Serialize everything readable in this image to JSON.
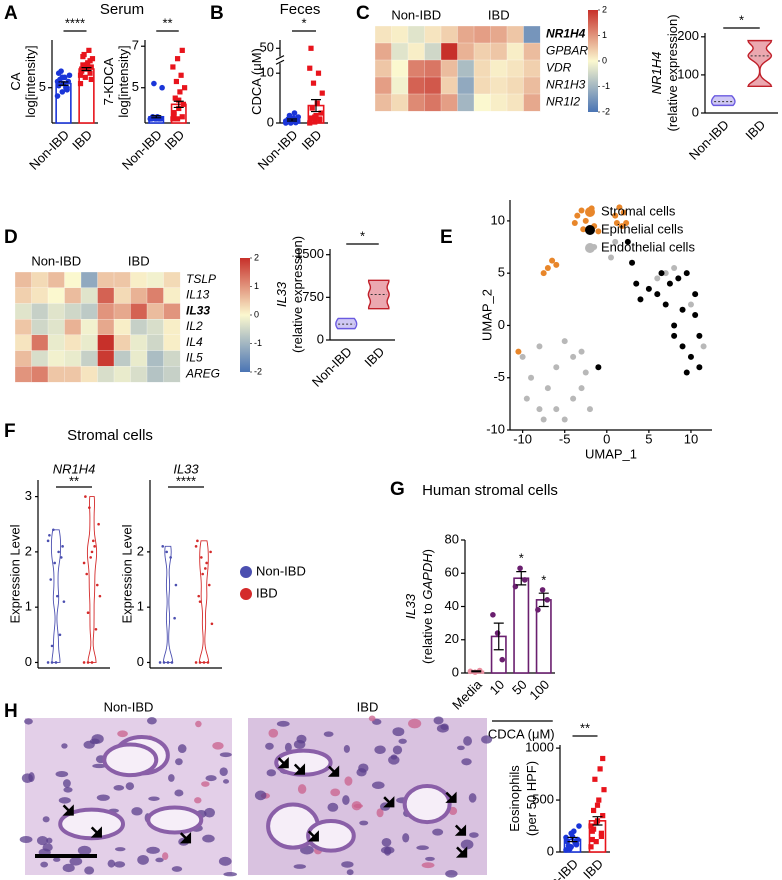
{
  "chart_data": [
    {
      "type": "bar",
      "panel": "A",
      "title": "Serum",
      "categories": [
        "Non-IBD",
        "IBD"
      ],
      "values": [
        5.2,
        5.9
      ],
      "errors": [
        0.08,
        0.07
      ],
      "points": [
        [
          4.6,
          4.8,
          5.0,
          5.1,
          5.2,
          5.3,
          5.4,
          5.5,
          5.6,
          5.8,
          5.0,
          5.3,
          5.5,
          4.9,
          5.7,
          5.2
        ],
        [
          5.2,
          5.5,
          5.7,
          5.8,
          5.9,
          6.0,
          6.1,
          6.2,
          6.4,
          6.6,
          6.8,
          5.6,
          6.0,
          6.3,
          5.9,
          6.1,
          5.4,
          6.5
        ]
      ],
      "colors": [
        "#1a35d8",
        "#e8141c"
      ],
      "markers": [
        "circle",
        "square"
      ],
      "ylabel": [
        [
          "CA"
        ],
        [
          "log[intensity]"
        ]
      ],
      "ylabel_italic": [
        [
          false
        ],
        [
          false
        ]
      ],
      "ylim": [
        3.3,
        7.3
      ],
      "yticks": [
        5
      ],
      "significance": "****"
    },
    {
      "type": "bar",
      "categories": [
        "Non-IBD",
        "IBD"
      ],
      "values": [
        3.6,
        4.2
      ],
      "errors": [
        0.05,
        0.15
      ],
      "points": [
        [
          3.5,
          3.5,
          3.5,
          3.5,
          3.5,
          3.5,
          3.6,
          3.6,
          5.0,
          5.2,
          3.5,
          3.5
        ],
        [
          3.5,
          3.5,
          3.6,
          3.8,
          4.0,
          4.2,
          4.5,
          4.8,
          5.0,
          5.3,
          5.6,
          6.0,
          6.4,
          6.8,
          3.7,
          4.4
        ]
      ],
      "colors": [
        "#1a35d8",
        "#e8141c"
      ],
      "markers": [
        "circle",
        "square"
      ],
      "ylabel": [
        [
          "7-KDCA"
        ],
        [
          "log[intensity]"
        ]
      ],
      "ylabel_italic": [
        [
          false
        ],
        [
          false
        ]
      ],
      "ylim": [
        3.3,
        7.3
      ],
      "yticks": [
        5,
        7
      ],
      "significance": "**"
    },
    {
      "type": "bar",
      "panel": "B",
      "title": "Feces",
      "categories": [
        "Non-IBD",
        "IBD"
      ],
      "values": [
        0.6,
        3.5
      ],
      "errors": [
        0.2,
        1.2
      ],
      "points": [
        [
          0,
          0,
          0.1,
          0.2,
          0.3,
          0.5,
          0.8,
          1,
          1.2,
          1.5,
          2,
          0.4,
          0.6,
          0.1
        ],
        [
          0,
          0.2,
          0.5,
          1,
          1.5,
          2,
          3,
          4,
          6,
          8,
          10,
          11,
          1.2,
          0.8,
          50
        ]
      ],
      "colors": [
        "#1a35d8",
        "#e8141c"
      ],
      "markers": [
        "circle",
        "square"
      ],
      "ylabel": [
        [
          "CDCA (μM)"
        ]
      ],
      "ylabel_italic": [
        [
          false
        ]
      ],
      "ylim": [
        0,
        55
      ],
      "ybreak": [
        12,
        45
      ],
      "yticks": [
        0,
        10,
        50
      ],
      "significance": "*"
    },
    {
      "type": "heatmap",
      "panel": "C",
      "groups": [
        "Non-IBD",
        "IBD"
      ],
      "rows": [
        "NR1H4",
        "GPBAR1",
        "VDR",
        "NR1H3",
        "NR1I2"
      ],
      "row_bold": [
        true,
        false,
        false,
        false,
        false
      ],
      "values": [
        [
          0.2,
          0.1,
          -0.3,
          0.2,
          0.4,
          0.8,
          0.9,
          0.8,
          0.5,
          -1.5
        ],
        [
          0.8,
          -0.3,
          0.1,
          -0.5,
          2,
          0.7,
          0.4,
          0.5,
          0.1,
          0.6
        ],
        [
          0.5,
          0.0,
          1.2,
          1.3,
          0.6,
          -0.9,
          0.3,
          0.1,
          0.2,
          0.4
        ],
        [
          0.9,
          -0.1,
          1.5,
          1.6,
          0.4,
          -1.2,
          0.3,
          0.2,
          0.3,
          0.6
        ],
        [
          0.6,
          0.3,
          1.1,
          1.3,
          0.9,
          -1.0,
          0.0,
          0.1,
          0.2,
          0.8
        ]
      ],
      "zlim": [
        -2,
        2
      ],
      "colorbar_ticks": [
        2,
        1,
        0,
        -1,
        -2
      ],
      "cmap": [
        "#4a74b4",
        "#fbf8cf",
        "#c7302a"
      ]
    },
    {
      "type": "violin",
      "categories": [
        "Non-IBD",
        "IBD"
      ],
      "points": [
        [
          20,
          30,
          45
        ],
        [
          70,
          150,
          190
        ]
      ],
      "colors": [
        "#cfc8f4",
        "#eba8b0"
      ],
      "strokes": [
        "#6a5ae0",
        "#c0202a"
      ],
      "ylabel": [
        [
          "NR1H4"
        ],
        [
          "(relative expression)"
        ]
      ],
      "ylabel_italic": [
        [
          true
        ],
        [
          false
        ]
      ],
      "ylim": [
        0,
        210
      ],
      "yticks": [
        0,
        100,
        200
      ],
      "significance": "*"
    },
    {
      "type": "heatmap",
      "panel": "D",
      "groups": [
        "Non-IBD",
        "IBD"
      ],
      "rows": [
        "TSLP",
        "IL13",
        "IL33",
        "IL2",
        "IL4",
        "IL5",
        "AREG"
      ],
      "row_bold": [
        false,
        false,
        true,
        false,
        false,
        false,
        false
      ],
      "values": [
        [
          0.6,
          0.3,
          0.6,
          0.0,
          -1.2,
          0.5,
          0.5,
          0.1,
          -0.1,
          0.3
        ],
        [
          0.4,
          0.2,
          0.0,
          0.6,
          -0.3,
          1.5,
          0.3,
          0.7,
          1.2,
          0.1
        ],
        [
          -0.3,
          -0.6,
          -0.3,
          -0.5,
          -0.7,
          1.0,
          0.8,
          1.5,
          0.6,
          1.0
        ],
        [
          0.5,
          -0.5,
          -0.3,
          0.7,
          -0.1,
          0.8,
          0.1,
          -0.6,
          -0.4,
          0.1
        ],
        [
          0.2,
          1.3,
          -0.2,
          0.2,
          -0.2,
          2.0,
          0.4,
          -0.2,
          -0.5,
          0.1
        ],
        [
          0.6,
          -0.4,
          -0.1,
          -0.2,
          -0.6,
          1.9,
          -0.7,
          -0.2,
          -0.9,
          -0.5
        ],
        [
          1.0,
          1.2,
          0.5,
          0.5,
          0.2,
          -0.4,
          -0.2,
          -0.4,
          -0.8,
          -0.6
        ]
      ],
      "zlim": [
        -2,
        2
      ],
      "colorbar_ticks": [
        2,
        1,
        0,
        -1,
        -2
      ],
      "cmap": [
        "#4a74b4",
        "#fbf8cf",
        "#c7302a"
      ]
    },
    {
      "type": "violin",
      "categories": [
        "Non-IBD",
        "IBD"
      ],
      "points": [
        [
          200,
          280,
          380
        ],
        [
          550,
          800,
          1050
        ]
      ],
      "colors": [
        "#cfc8f4",
        "#eba8b0"
      ],
      "strokes": [
        "#6a5ae0",
        "#c0202a"
      ],
      "ylabel": [
        [
          "IL33"
        ],
        [
          "(relative expression)"
        ]
      ],
      "ylabel_italic": [
        [
          true
        ],
        [
          false
        ]
      ],
      "ylim": [
        0,
        1600
      ],
      "yticks": [
        0,
        750,
        1500
      ],
      "significance": "*"
    },
    {
      "type": "scatter",
      "panel": "E",
      "xlabel": "UMAP_1",
      "ylabel": "UMAP_2",
      "xlim": [
        -11.5,
        12.5
      ],
      "ylim": [
        -10,
        12
      ],
      "xticks": [
        -10,
        -5,
        0,
        5,
        10
      ],
      "yticks": [
        -10,
        -5,
        0,
        5,
        10
      ],
      "series": [
        {
          "name": "Stromal cells",
          "color": "#e8862a",
          "x": [
            -3.5,
            -3,
            -2.5,
            -2,
            -1.5,
            -1,
            -2.8,
            -3.8,
            -1.8,
            1,
            1.5,
            2,
            1.8,
            2.3,
            1.2,
            -7,
            -6.5,
            -7.5,
            -6,
            -10.5
          ],
          "y": [
            10.5,
            11,
            10,
            10.8,
            9.5,
            9,
            9.2,
            9.8,
            11.2,
            10.5,
            11.3,
            10.8,
            9.5,
            9.8,
            9.8,
            5.5,
            6.2,
            5,
            5.8,
            -2.5
          ]
        },
        {
          "name": "Epithelial cells",
          "color": "#000000",
          "x": [
            2.5,
            3,
            3.5,
            4,
            5,
            6,
            6.5,
            7.5,
            8.5,
            9.5,
            10.5,
            9,
            8,
            9,
            10,
            11,
            9.5,
            8,
            7,
            11,
            10.5,
            -1
          ],
          "y": [
            8,
            6,
            4,
            2.5,
            3.5,
            3,
            5,
            4,
            4.5,
            5,
            3,
            1.5,
            0,
            -2,
            -3,
            -4,
            -4.5,
            -1,
            2,
            -1,
            1,
            -4
          ]
        },
        {
          "name": "Endothelial cells",
          "color": "#b8b8b8",
          "x": [
            -10,
            -9,
            -8,
            -7,
            -6,
            -5,
            -4,
            -3,
            -2,
            -8,
            -6,
            -4,
            -3,
            -5,
            -9.5,
            -7.5,
            -2.5,
            0.5,
            1,
            -1.5,
            7,
            8,
            6,
            10,
            11.5
          ],
          "y": [
            -3,
            -5,
            -2,
            -6,
            -8,
            -9,
            -7,
            -6,
            -8,
            -8,
            -4,
            -3,
            -2.5,
            -1.5,
            -7,
            -9,
            -4.5,
            6.5,
            8,
            7.5,
            5,
            5.5,
            4.5,
            2,
            -2
          ]
        }
      ]
    },
    {
      "type": "strip",
      "panel": "F",
      "title": "Stromal cells",
      "subtitle": "NR1H4",
      "ylabel": "Expression Level",
      "ylim": [
        -0.1,
        3.3
      ],
      "yticks": [
        0,
        1,
        2,
        3
      ],
      "significance": "**",
      "series": [
        {
          "color": "#4b4fb0",
          "values": [
            0,
            0,
            0,
            0.5,
            1.1,
            1.5,
            1.8,
            2,
            2.1,
            2.3,
            2.4,
            1.2,
            1.9,
            2.2,
            0.3
          ]
        },
        {
          "color": "#d42a2a",
          "values": [
            0,
            0,
            0,
            0.6,
            1.2,
            1.6,
            1.9,
            2.1,
            2.5,
            3,
            2.8,
            2.2,
            1.4,
            1.8,
            0.9,
            2.0
          ]
        }
      ]
    },
    {
      "type": "strip",
      "subtitle": "IL33",
      "ylabel": "Expression Level",
      "ylim": [
        -0.1,
        3.3
      ],
      "yticks": [
        0,
        1,
        2
      ],
      "significance": "****",
      "legend": true,
      "series": [
        {
          "name": "Non-IBD",
          "color": "#4b4fb0",
          "values": [
            0,
            0,
            0,
            0,
            1.4,
            2.1,
            2,
            1.9,
            0.8
          ]
        },
        {
          "name": "IBD",
          "color": "#d42a2a",
          "values": [
            0,
            0,
            0,
            0,
            0.7,
            1.2,
            1.6,
            1.8,
            2.0,
            2.2,
            1.9,
            1.7,
            1.4,
            2.1,
            1.1
          ]
        }
      ]
    },
    {
      "type": "bar",
      "panel": "G",
      "title": "Human stromal cells",
      "categories": [
        "Media",
        "10",
        "50",
        "100"
      ],
      "xlabel": "CDCA (μM)",
      "values": [
        1,
        22,
        57,
        44
      ],
      "errors": [
        0.3,
        8,
        4,
        4
      ],
      "points": [
        [
          1,
          0.5,
          1.5
        ],
        [
          35,
          24,
          8
        ],
        [
          52,
          63,
          56
        ],
        [
          38,
          50,
          44
        ]
      ],
      "colors": [
        "#e98fa0",
        "#6a1f6f",
        "#6a1f6f",
        "#6a1f6f"
      ],
      "markers": [
        "circle",
        "circle",
        "circle",
        "circle"
      ],
      "ylabel": [
        [
          "IL33"
        ],
        [
          "(relative to ",
          "GAPDH",
          ")"
        ]
      ],
      "ylabel_italic": [
        [
          true
        ],
        [
          false,
          true,
          false
        ]
      ],
      "ylim": [
        0,
        80
      ],
      "yticks": [
        0,
        20,
        40,
        60,
        80
      ],
      "significance": [
        null,
        null,
        "*",
        "*"
      ]
    },
    {
      "type": "micrograph",
      "panel": "H",
      "labels": [
        "Non-IBD",
        "IBD"
      ]
    },
    {
      "type": "bar",
      "categories": [
        "Non-IBD",
        "IBD"
      ],
      "values": [
        120,
        300
      ],
      "errors": [
        20,
        40
      ],
      "points": [
        [
          20,
          50,
          80,
          100,
          150,
          120,
          60,
          200,
          250,
          30,
          90,
          140,
          180,
          70
        ],
        [
          50,
          100,
          150,
          200,
          300,
          350,
          400,
          500,
          600,
          700,
          800,
          250,
          280,
          180,
          120,
          450,
          900,
          220
        ]
      ],
      "colors": [
        "#1a35d8",
        "#e8141c"
      ],
      "markers": [
        "circle",
        "square"
      ],
      "ylabel": [
        [
          "Eosinophils"
        ],
        [
          "(per 50 HPF)"
        ]
      ],
      "ylabel_italic": [
        [
          false
        ],
        [
          false
        ]
      ],
      "ylim": [
        0,
        1030
      ],
      "yticks": [
        0,
        500,
        1000
      ],
      "significance": "**"
    }
  ]
}
